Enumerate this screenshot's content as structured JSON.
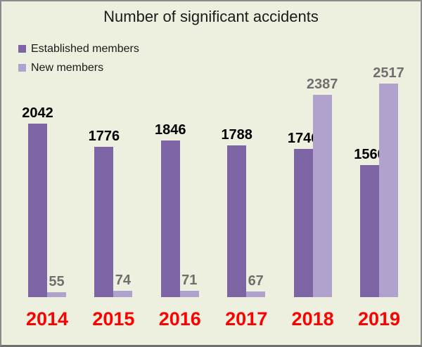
{
  "chart_data": {
    "type": "bar",
    "title": "Number of significant accidents",
    "categories": [
      "2014",
      "2015",
      "2016",
      "2017",
      "2018",
      "2019"
    ],
    "series": [
      {
        "name": "Established members",
        "color": "#7C64A5",
        "label_color": "#000000",
        "values": [
          2042,
          1776,
          1846,
          1788,
          1746,
          1560
        ]
      },
      {
        "name": "New members",
        "color": "#B1A2CD",
        "label_color": "#726E6E",
        "values": [
          55,
          74,
          71,
          67,
          2387,
          2517
        ]
      }
    ],
    "ylim": [
      0,
      2600
    ],
    "grid": false,
    "legend_position": "top-left",
    "data_labels": "outside-end",
    "category_label_color": "#FF0000",
    "background": "#EDF0DF",
    "border_color": "#8A8A8A"
  }
}
